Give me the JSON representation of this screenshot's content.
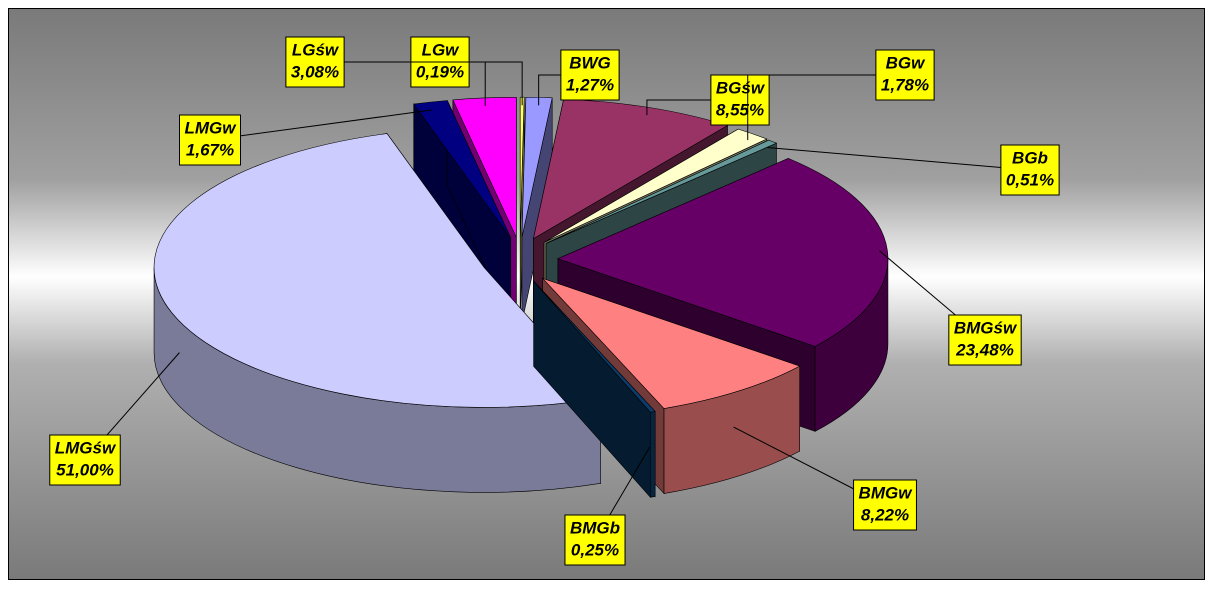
{
  "chart_data": {
    "type": "pie",
    "categories": [
      "LGw",
      "BWG",
      "BGśw",
      "BGw",
      "BGb",
      "BMGśw",
      "BMGw",
      "BMGb",
      "LMGśw",
      "LMGw",
      "LGśw"
    ],
    "values": [
      0.19,
      1.27,
      8.55,
      1.78,
      0.51,
      23.48,
      8.22,
      0.25,
      51.0,
      1.67,
      3.08
    ],
    "value_labels": [
      "0,19%",
      "1,27%",
      "8,55%",
      "1,78%",
      "0,51%",
      "23,48%",
      "8,22%",
      "0,25%",
      "51,00%",
      "1,67%",
      "3,08%"
    ],
    "colors": [
      "#ffff66",
      "#9999ff",
      "#993366",
      "#ffffcc",
      "#669999",
      "#660066",
      "#ff8080",
      "#0a3d6b",
      "#ccccff",
      "#000080",
      "#ff00ff"
    ]
  }
}
